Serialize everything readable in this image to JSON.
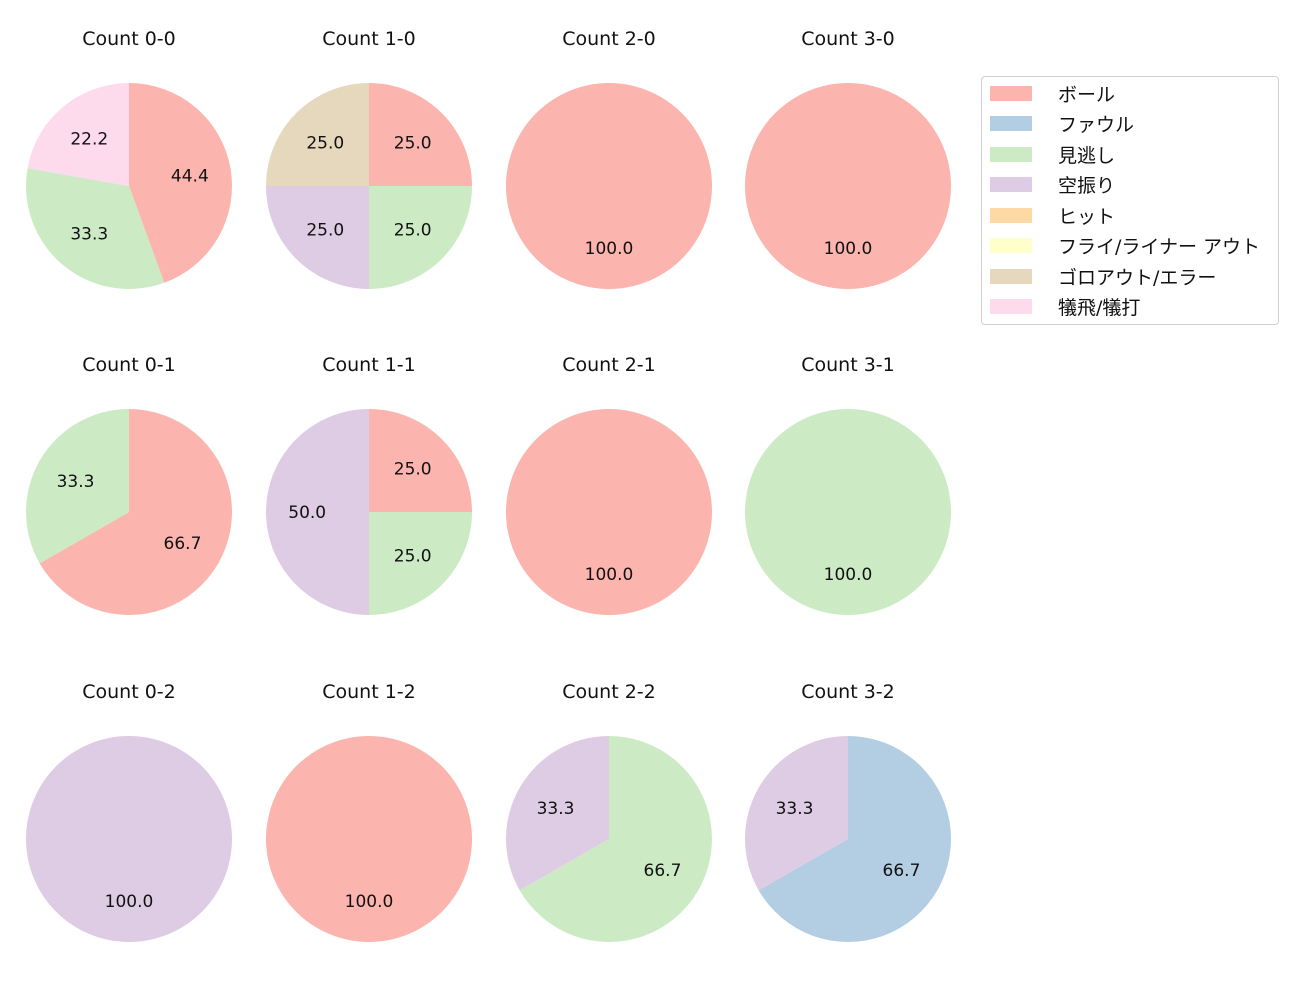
{
  "legend": {
    "items": [
      {
        "label": "ボール",
        "color": "#fbb4ae"
      },
      {
        "label": "ファウル",
        "color": "#b3cde3"
      },
      {
        "label": "見逃し",
        "color": "#ccebc5"
      },
      {
        "label": "空振り",
        "color": "#decbe4"
      },
      {
        "label": "ヒット",
        "color": "#fed9a6"
      },
      {
        "label": "フライ/ライナー アウト",
        "color": "#ffffcc"
      },
      {
        "label": "ゴロアウト/エラー",
        "color": "#e5d8bd"
      },
      {
        "label": "犠飛/犠打",
        "color": "#fddaec"
      }
    ]
  },
  "chart_data": {
    "type": "pie",
    "title": "",
    "categories": [
      "ボール",
      "ファウル",
      "見逃し",
      "空振り",
      "ヒット",
      "フライ/ライナー アウト",
      "ゴロアウト/エラー",
      "犠飛/犠打"
    ],
    "colors": [
      "#fbb4ae",
      "#b3cde3",
      "#ccebc5",
      "#decbe4",
      "#fed9a6",
      "#ffffcc",
      "#e5d8bd",
      "#fddaec"
    ],
    "start_angle": "12 o'clock",
    "direction": "clockwise",
    "label_format": "%.1f",
    "legend_position": "upper right",
    "charts": [
      {
        "title": "Count 0-0",
        "row": 0,
        "col": 0,
        "slices": [
          {
            "category": "ボール",
            "value": 44.4
          },
          {
            "category": "見逃し",
            "value": 33.3
          },
          {
            "category": "犠飛/犠打",
            "value": 22.2
          }
        ]
      },
      {
        "title": "Count 1-0",
        "row": 0,
        "col": 1,
        "slices": [
          {
            "category": "ボール",
            "value": 25.0
          },
          {
            "category": "見逃し",
            "value": 25.0
          },
          {
            "category": "空振り",
            "value": 25.0
          },
          {
            "category": "ゴロアウト/エラー",
            "value": 25.0
          }
        ]
      },
      {
        "title": "Count 2-0",
        "row": 0,
        "col": 2,
        "slices": [
          {
            "category": "ボール",
            "value": 100.0
          }
        ]
      },
      {
        "title": "Count 3-0",
        "row": 0,
        "col": 3,
        "slices": [
          {
            "category": "ボール",
            "value": 100.0
          }
        ]
      },
      {
        "title": "Count 0-1",
        "row": 1,
        "col": 0,
        "slices": [
          {
            "category": "ボール",
            "value": 66.7
          },
          {
            "category": "見逃し",
            "value": 33.3
          }
        ]
      },
      {
        "title": "Count 1-1",
        "row": 1,
        "col": 1,
        "slices": [
          {
            "category": "ボール",
            "value": 25.0
          },
          {
            "category": "見逃し",
            "value": 25.0
          },
          {
            "category": "空振り",
            "value": 50.0
          }
        ]
      },
      {
        "title": "Count 2-1",
        "row": 1,
        "col": 2,
        "slices": [
          {
            "category": "ボール",
            "value": 100.0
          }
        ]
      },
      {
        "title": "Count 3-1",
        "row": 1,
        "col": 3,
        "slices": [
          {
            "category": "見逃し",
            "value": 100.0
          }
        ]
      },
      {
        "title": "Count 0-2",
        "row": 2,
        "col": 0,
        "slices": [
          {
            "category": "空振り",
            "value": 100.0
          }
        ]
      },
      {
        "title": "Count 1-2",
        "row": 2,
        "col": 1,
        "slices": [
          {
            "category": "ボール",
            "value": 100.0
          }
        ]
      },
      {
        "title": "Count 2-2",
        "row": 2,
        "col": 2,
        "slices": [
          {
            "category": "見逃し",
            "value": 66.7
          },
          {
            "category": "空振り",
            "value": 33.3
          }
        ]
      },
      {
        "title": "Count 3-2",
        "row": 2,
        "col": 3,
        "slices": [
          {
            "category": "ファウル",
            "value": 66.7
          },
          {
            "category": "空振り",
            "value": 33.3
          }
        ]
      }
    ]
  }
}
